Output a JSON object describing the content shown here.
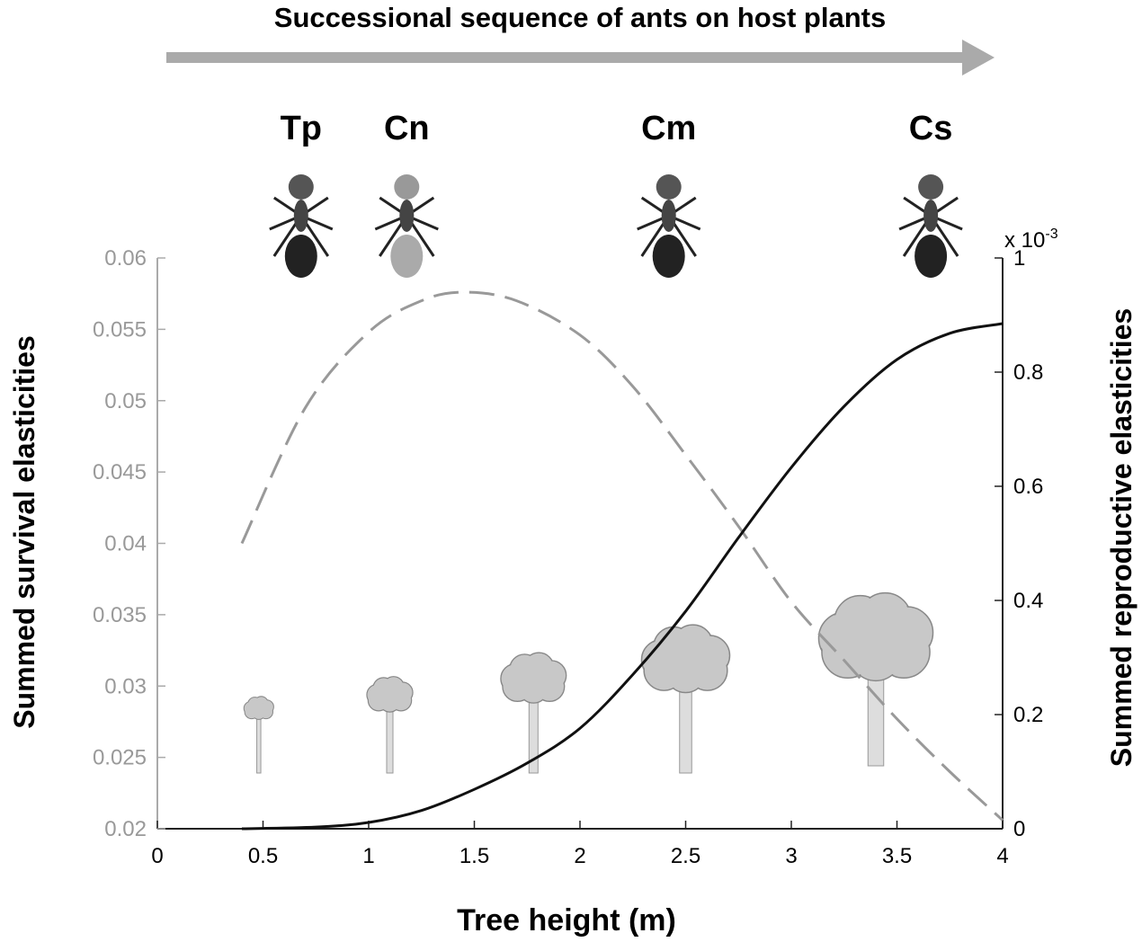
{
  "chart_data": {
    "type": "line",
    "title": "Successional sequence of ants on host plants",
    "xlabel": "Tree height (m)",
    "ylabel_left": "Summed survival elasticities",
    "ylabel_right": "Summed reproductive elasticities",
    "right_axis_multiplier": "x 10",
    "right_axis_exponent": "-3",
    "xlim": [
      0,
      4
    ],
    "ylim_left": [
      0.02,
      0.06
    ],
    "ylim_right": [
      0,
      1
    ],
    "x_ticks": [
      "0",
      "0.5",
      "1",
      "1.5",
      "2",
      "2.5",
      "3",
      "3.5",
      "4"
    ],
    "left_ticks": [
      "0.02",
      "0.025",
      "0.03",
      "0.035",
      "0.04",
      "0.045",
      "0.05",
      "0.055",
      "0.06"
    ],
    "right_ticks": [
      "0",
      "0.2",
      "0.4",
      "0.6",
      "0.8",
      "1"
    ],
    "grid": false,
    "series": [
      {
        "name": "Survival elasticities",
        "axis": "left",
        "style": "dashed",
        "color": "#999999",
        "x": [
          0.4,
          0.7,
          1.0,
          1.25,
          1.45,
          1.7,
          2.0,
          2.25,
          2.5,
          2.75,
          3.0,
          3.25,
          3.5,
          3.75,
          4.0
        ],
        "y": [
          0.04,
          0.0495,
          0.0548,
          0.057,
          0.0576,
          0.057,
          0.0546,
          0.051,
          0.0462,
          0.0412,
          0.0359,
          0.0318,
          0.0277,
          0.024,
          0.0206
        ]
      },
      {
        "name": "Reproductive elasticities",
        "axis": "right",
        "style": "solid",
        "color": "#111111",
        "x": [
          0.4,
          0.75,
          1.0,
          1.25,
          1.5,
          1.75,
          2.0,
          2.25,
          2.5,
          2.75,
          3.0,
          3.25,
          3.5,
          3.75,
          4.0
        ],
        "y": [
          0.0,
          0.003,
          0.011,
          0.032,
          0.069,
          0.115,
          0.176,
          0.27,
          0.381,
          0.51,
          0.633,
          0.74,
          0.822,
          0.868,
          0.885
        ]
      }
    ],
    "ants": [
      {
        "label": "Tp",
        "x": 0.68
      },
      {
        "label": "Cn",
        "x": 1.18
      },
      {
        "label": "Cm",
        "x": 2.42
      },
      {
        "label": "Cs",
        "x": 3.66
      }
    ],
    "trees": [
      {
        "x": 0.48,
        "size": 0.45
      },
      {
        "x": 1.1,
        "size": 0.7
      },
      {
        "x": 1.78,
        "size": 1.0
      },
      {
        "x": 2.5,
        "size": 1.35
      },
      {
        "x": 3.4,
        "size": 1.75
      }
    ]
  }
}
